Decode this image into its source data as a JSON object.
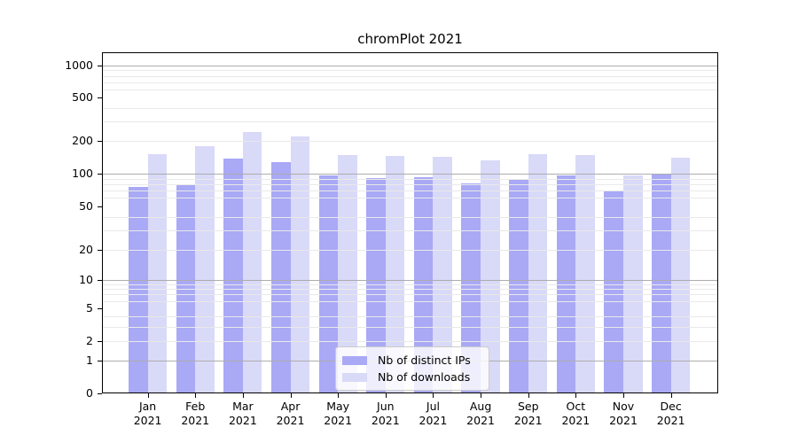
{
  "title": "chromPlot 2021",
  "colors": {
    "distinct_ips": "#a9a9f6",
    "downloads": "#d9d9f8",
    "grid_major": "#adadad",
    "grid_minor": "#e9e9e9",
    "axis": "#000000",
    "legend_border": "#cccccc"
  },
  "legend": {
    "items": [
      {
        "label": "Nb of distinct IPs",
        "color_key": "distinct_ips"
      },
      {
        "label": "Nb of downloads",
        "color_key": "downloads"
      }
    ]
  },
  "chart_data": {
    "type": "bar",
    "title": "chromPlot 2021",
    "categories": [
      "Jan 2021",
      "Feb 2021",
      "Mar 2021",
      "Apr 2021",
      "May 2021",
      "Jun 2021",
      "Jul 2021",
      "Aug 2021",
      "Sep 2021",
      "Oct 2021",
      "Nov 2021",
      "Dec 2021"
    ],
    "series": [
      {
        "name": "Nb of distinct IPs",
        "values": [
          75,
          79,
          138,
          128,
          96,
          91,
          93,
          81,
          89,
          97,
          70,
          100
        ]
      },
      {
        "name": "Nb of downloads",
        "values": [
          150,
          180,
          243,
          220,
          147,
          145,
          142,
          133,
          150,
          149,
          97,
          139
        ]
      }
    ],
    "xlabel": "",
    "ylabel": "",
    "yscale": "symlog",
    "yticks": [
      0,
      1,
      2,
      5,
      10,
      20,
      50,
      100,
      200,
      500,
      1000
    ],
    "minor_gridlines": [
      2,
      3,
      4,
      6,
      7,
      8,
      9,
      20,
      30,
      40,
      60,
      70,
      80,
      90,
      200,
      300,
      400,
      600,
      700,
      800,
      900
    ],
    "major_gridlines": [
      1,
      10,
      100,
      1000
    ],
    "ylim": [
      0,
      1300
    ],
    "grid": true,
    "legend_position": "lower center"
  }
}
